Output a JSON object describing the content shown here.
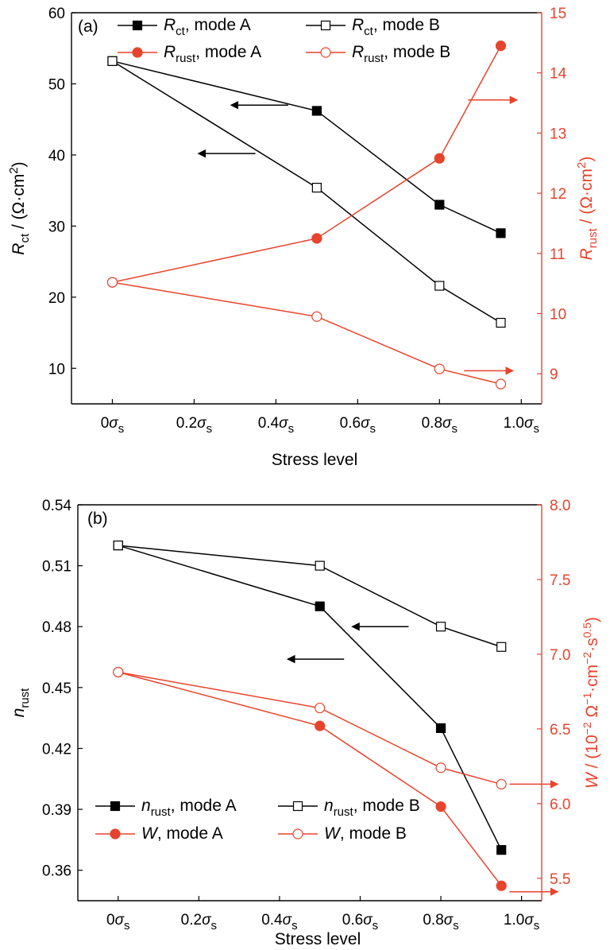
{
  "colors": {
    "left_axis": "#000000",
    "right_axis": "#e8432c"
  },
  "chart_data": [
    {
      "type": "line",
      "panel_label": "(a)",
      "xlabel": "Stress level",
      "x": [
        0,
        0.5,
        0.8,
        0.95
      ],
      "x_ticks": [
        0,
        0.2,
        0.4,
        0.6,
        0.8,
        1.0
      ],
      "x_tick_labels": [
        {
          "num": "0",
          "sym": "σ",
          "sub": "s"
        },
        {
          "num": "0.2",
          "sym": "σ",
          "sub": "s"
        },
        {
          "num": "0.4",
          "sym": "σ",
          "sub": "s"
        },
        {
          "num": "0.6",
          "sym": "σ",
          "sub": "s"
        },
        {
          "num": "0.8",
          "sym": "σ",
          "sub": "s"
        },
        {
          "num": "1.0",
          "sym": "σ",
          "sub": "s"
        }
      ],
      "xlim": [
        -0.1,
        1.05
      ],
      "ylabel_left": {
        "main": "R",
        "sub": "ct",
        "rest": " / (Ω·cm",
        "sup": "2",
        "end": ")"
      },
      "ylim_left": [
        5,
        60
      ],
      "yticks_left": [
        10,
        20,
        30,
        40,
        50,
        60
      ],
      "ylabel_right": {
        "main": "R",
        "sub": "rust",
        "rest": " / (Ω·cm",
        "sup": "2",
        "end": ")"
      },
      "ylim_right": [
        8.5,
        15
      ],
      "yticks_right": [
        9,
        10,
        11,
        12,
        13,
        14,
        15
      ],
      "series": [
        {
          "id": "rct-a",
          "legend": {
            "main": "R",
            "sub": "ct",
            "rest": ", mode A"
          },
          "axis": "left",
          "color": "#000000",
          "marker": "square-filled",
          "y": [
            53.2,
            46.2,
            33.0,
            29.0
          ]
        },
        {
          "id": "rct-b",
          "legend": {
            "main": "R",
            "sub": "ct",
            "rest": ", mode B"
          },
          "axis": "left",
          "color": "#000000",
          "marker": "square-open",
          "y": [
            53.2,
            35.4,
            21.6,
            16.4
          ]
        },
        {
          "id": "rrust-a",
          "legend": {
            "main": "R",
            "sub": "rust",
            "rest": ", mode A"
          },
          "axis": "right",
          "color": "#e8432c",
          "marker": "circle-filled",
          "y": [
            10.52,
            11.25,
            12.58,
            14.45
          ]
        },
        {
          "id": "rrust-b",
          "legend": {
            "main": "R",
            "sub": "rust",
            "rest": ", mode B"
          },
          "axis": "right",
          "color": "#e8432c",
          "marker": "circle-open",
          "y": [
            10.52,
            9.95,
            9.08,
            8.83
          ]
        }
      ],
      "annotations": [
        {
          "kind": "arrow-left",
          "color": "#000000",
          "from": [
            0.43,
            47
          ],
          "to": [
            0.29,
            47
          ]
        },
        {
          "kind": "arrow-left",
          "color": "#000000",
          "from": [
            0.35,
            40.2
          ],
          "to": [
            0.21,
            40.2
          ]
        },
        {
          "kind": "arrow-right",
          "color": "#e8432c",
          "from": [
            0.87,
            13.55
          ],
          "to": [
            0.99,
            13.55
          ]
        },
        {
          "kind": "arrow-right",
          "color": "#e8432c",
          "from": [
            0.86,
            9.05
          ],
          "to": [
            0.98,
            9.05
          ]
        }
      ]
    },
    {
      "type": "line",
      "panel_label": "(b)",
      "xlabel": "Stress level",
      "x": [
        0,
        0.5,
        0.8,
        0.95
      ],
      "x_ticks": [
        0,
        0.2,
        0.4,
        0.6,
        0.8,
        1.0
      ],
      "x_tick_labels": [
        {
          "num": "0",
          "sym": "σ",
          "sub": "s"
        },
        {
          "num": "0.2",
          "sym": "σ",
          "sub": "s"
        },
        {
          "num": "0.4",
          "sym": "σ",
          "sub": "s"
        },
        {
          "num": "0.6",
          "sym": "σ",
          "sub": "s"
        },
        {
          "num": "0.8",
          "sym": "σ",
          "sub": "s"
        },
        {
          "num": "1.0",
          "sym": "σ",
          "sub": "s"
        }
      ],
      "xlim": [
        -0.1,
        1.05
      ],
      "ylabel_left": {
        "main": "n",
        "sub": "rust",
        "rest": "",
        "sup": "",
        "end": ""
      },
      "ylim_left": [
        0.345,
        0.54
      ],
      "yticks_left": [
        0.36,
        0.39,
        0.42,
        0.45,
        0.48,
        0.51,
        0.54
      ],
      "ytick_labels_left": [
        "0.36",
        "0.39",
        "0.42",
        "0.45",
        "0.48",
        "0.51",
        "0.54"
      ],
      "ylabel_right": {
        "main": "W",
        "rest": " / (10",
        "sup1": "−2",
        "mid": " Ω",
        "sup2": "−1",
        "mid2": "·cm",
        "sup3": "−2",
        "mid3": "·s",
        "sup4": "0.5",
        "end": ")"
      },
      "ylim_right": [
        5.35,
        8.0
      ],
      "yticks_right": [
        5.5,
        6.0,
        6.5,
        7.0,
        7.5,
        8.0
      ],
      "ytick_labels_right": [
        "5.5",
        "6.0",
        "6.5",
        "7.0",
        "7.5",
        "8.0"
      ],
      "series": [
        {
          "id": "nrust-a",
          "legend": {
            "main": "n",
            "sub": "rust",
            "rest": ", mode A"
          },
          "axis": "left",
          "color": "#000000",
          "marker": "square-filled",
          "y": [
            0.52,
            0.49,
            0.43,
            0.37
          ]
        },
        {
          "id": "nrust-b",
          "legend": {
            "main": "n",
            "sub": "rust",
            "rest": ", mode B"
          },
          "axis": "left",
          "color": "#000000",
          "marker": "square-open",
          "y": [
            0.52,
            0.51,
            0.48,
            0.47
          ]
        },
        {
          "id": "w-a",
          "legend": {
            "main": "W",
            "sub": "",
            "rest": ", mode A"
          },
          "axis": "right",
          "color": "#e8432c",
          "marker": "circle-filled",
          "y": [
            6.88,
            6.52,
            5.98,
            5.45
          ]
        },
        {
          "id": "w-b",
          "legend": {
            "main": "W",
            "sub": "",
            "rest": ", mode B"
          },
          "axis": "right",
          "color": "#e8432c",
          "marker": "circle-open",
          "y": [
            6.88,
            6.64,
            6.24,
            6.13
          ]
        }
      ],
      "annotations": [
        {
          "kind": "arrow-left",
          "color": "#000000",
          "from": [
            0.72,
            0.48
          ],
          "to": [
            0.58,
            0.48
          ]
        },
        {
          "kind": "arrow-left",
          "color": "#000000",
          "from": [
            0.56,
            0.464
          ],
          "to": [
            0.42,
            0.464
          ]
        },
        {
          "kind": "arrow-right",
          "color": "#e8432c",
          "from": [
            0.97,
            6.13
          ],
          "to": [
            1.09,
            6.13
          ]
        },
        {
          "kind": "arrow-right",
          "color": "#e8432c",
          "from": [
            0.97,
            5.41
          ],
          "to": [
            1.09,
            5.41
          ]
        }
      ]
    }
  ]
}
